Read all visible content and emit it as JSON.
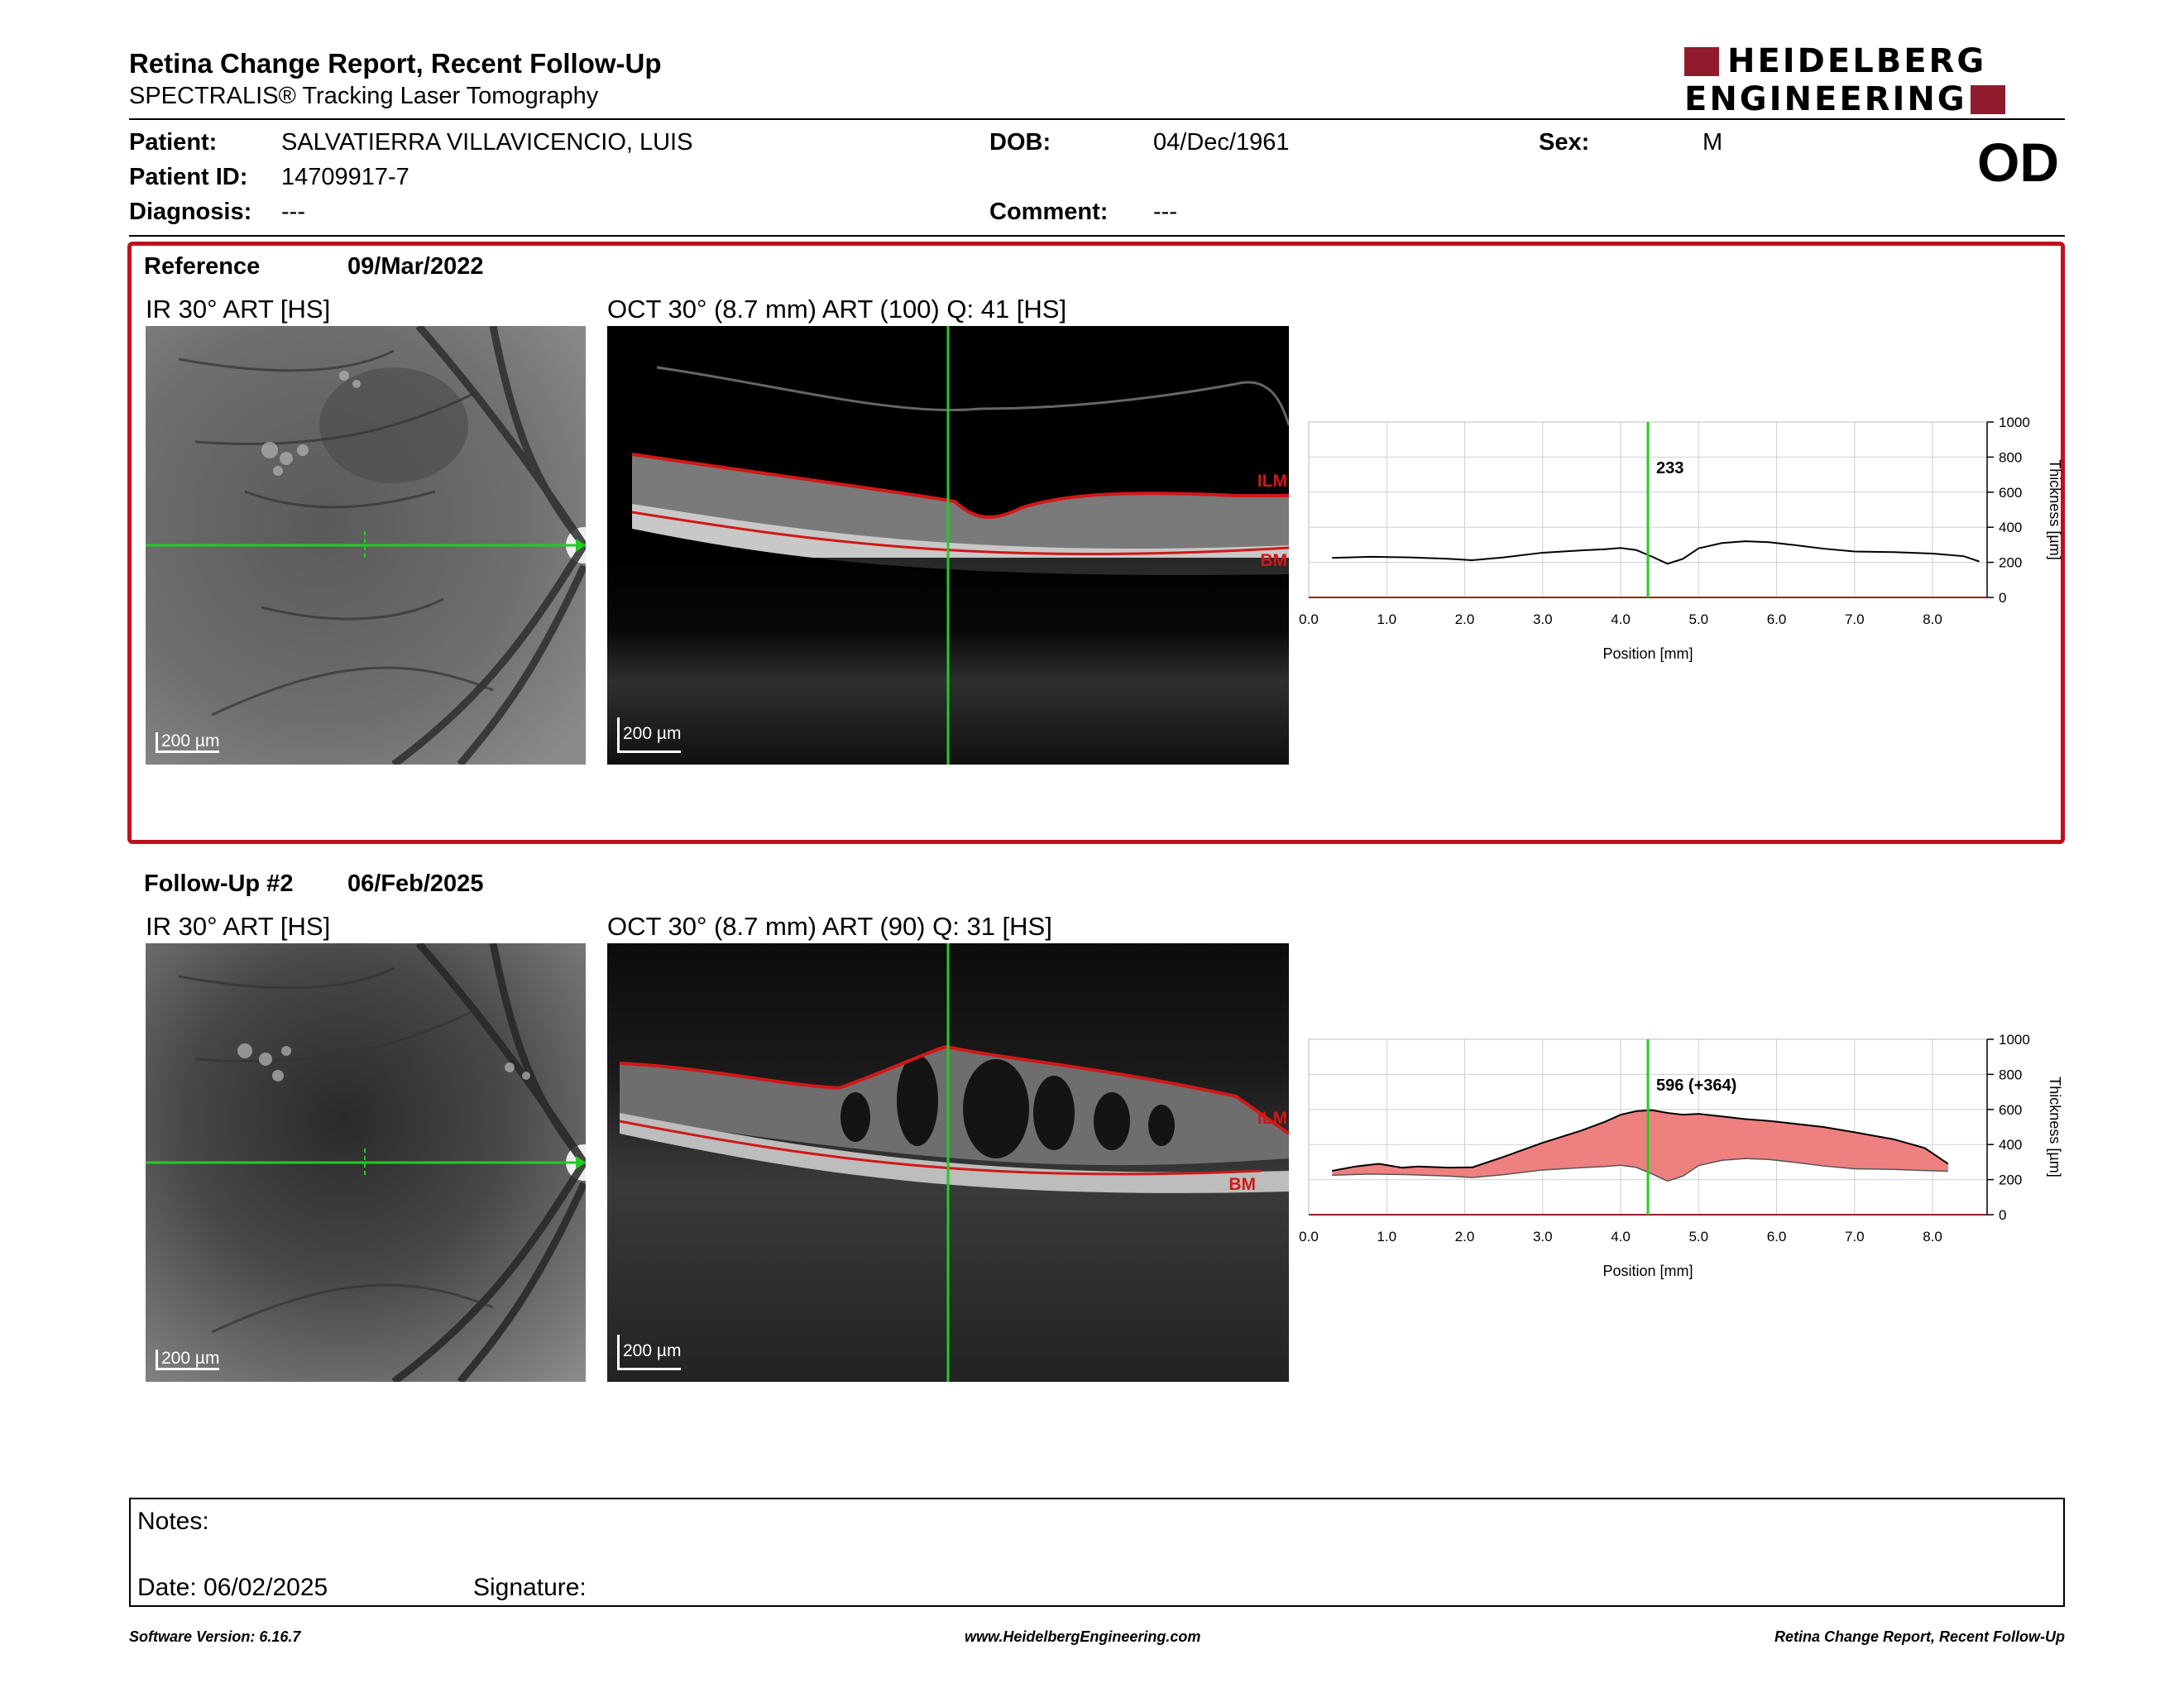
{
  "header": {
    "title": "Retina Change Report, Recent Follow-Up",
    "subtitle": "SPECTRALIS® Tracking Laser Tomography",
    "logo_line1": "HEIDELBERG",
    "logo_line2": "ENGINEERING",
    "eye": "OD"
  },
  "patient": {
    "patient_label": "Patient:",
    "patient_name": "SALVATIERRA VILLAVICENCIO, LUIS",
    "dob_label": "DOB:",
    "dob": "04/Dec/1961",
    "sex_label": "Sex:",
    "sex": "M",
    "id_label": "Patient ID:",
    "id": "14709917-7",
    "diagnosis_label": "Diagnosis:",
    "diagnosis": "---",
    "comment_label": "Comment:",
    "comment": "---"
  },
  "reference": {
    "label": "Reference",
    "date": "09/Mar/2022",
    "ir_title": "IR 30° ART [HS]",
    "oct_title": "OCT 30° (8.7 mm) ART (100) Q: 41 [HS]",
    "scale_label": "200 µm",
    "layer_top": "ILM",
    "layer_bottom": "BM"
  },
  "followup": {
    "label": "Follow-Up #2",
    "date": "06/Feb/2025",
    "ir_title": "IR 30° ART [HS]",
    "oct_title": "OCT 30° (8.7 mm) ART (90) Q: 31 [HS]",
    "scale_label": "200 µm",
    "layer_top": "ILM",
    "layer_bottom": "BM"
  },
  "chart_data": [
    {
      "type": "line",
      "xlabel": "Position [mm]",
      "ylabel": "Thickness [µm]",
      "xlim": [
        0,
        8.7
      ],
      "ylim": [
        0,
        1000
      ],
      "xticks": [
        "0.0",
        "1.0",
        "2.0",
        "3.0",
        "4.0",
        "5.0",
        "6.0",
        "7.0",
        "8.0"
      ],
      "yticks": [
        "0",
        "200",
        "400",
        "600",
        "800",
        "1000"
      ],
      "grid": true,
      "cursor_x": 4.35,
      "cursor_label": "233",
      "cursor_color": "#22cc22",
      "series": [
        {
          "x": [
            0.3,
            0.8,
            1.3,
            1.8,
            2.1,
            2.5,
            3.0,
            3.5,
            3.8,
            4.0,
            4.2,
            4.4,
            4.6,
            4.8,
            5.0,
            5.3,
            5.6,
            5.9,
            6.2,
            6.6,
            7.0,
            7.5,
            8.0,
            8.4,
            8.6
          ],
          "values": [
            225,
            232,
            228,
            220,
            212,
            228,
            255,
            268,
            275,
            282,
            270,
            233,
            192,
            220,
            280,
            310,
            320,
            315,
            300,
            278,
            262,
            258,
            250,
            235,
            205
          ]
        }
      ]
    },
    {
      "type": "area",
      "xlabel": "Position [mm]",
      "ylabel": "Thickness [µm]",
      "xlim": [
        0,
        8.7
      ],
      "ylim": [
        0,
        1000
      ],
      "xticks": [
        "0.0",
        "1.0",
        "2.0",
        "3.0",
        "4.0",
        "5.0",
        "6.0",
        "7.0",
        "8.0"
      ],
      "yticks": [
        "0",
        "200",
        "400",
        "600",
        "800",
        "1000"
      ],
      "grid": true,
      "cursor_x": 4.35,
      "cursor_label": "596 (+364)",
      "cursor_color": "#22cc22",
      "fill_color": "#ee8080",
      "series": [
        {
          "name": "Follow-Up",
          "x": [
            0.3,
            0.6,
            0.9,
            1.2,
            1.4,
            1.8,
            2.1,
            2.5,
            3.0,
            3.5,
            3.8,
            4.0,
            4.2,
            4.4,
            4.6,
            4.8,
            5.0,
            5.3,
            5.6,
            5.9,
            6.2,
            6.6,
            7.0,
            7.5,
            7.9,
            8.2
          ],
          "values": [
            250,
            275,
            290,
            268,
            275,
            268,
            270,
            330,
            410,
            480,
            530,
            570,
            590,
            596,
            580,
            570,
            575,
            560,
            545,
            535,
            520,
            500,
            470,
            430,
            380,
            290
          ]
        },
        {
          "name": "Reference",
          "x": [
            0.3,
            0.8,
            1.3,
            1.8,
            2.1,
            2.5,
            3.0,
            3.5,
            3.8,
            4.0,
            4.2,
            4.4,
            4.6,
            4.8,
            5.0,
            5.3,
            5.6,
            5.9,
            6.2,
            6.6,
            7.0,
            7.5,
            7.9,
            8.2
          ],
          "values": [
            225,
            232,
            228,
            220,
            212,
            228,
            255,
            268,
            275,
            282,
            270,
            233,
            192,
            220,
            280,
            310,
            320,
            315,
            300,
            278,
            262,
            258,
            252,
            248
          ]
        }
      ]
    }
  ],
  "notes": {
    "notes_label": "Notes:",
    "date_label": "Date: 06/02/2025",
    "signature_label": "Signature:"
  },
  "footer": {
    "software": "Software Version: 6.16.7",
    "website": "www.HeidelbergEngineering.com",
    "report_name": "Retina Change Report, Recent Follow-Up"
  },
  "colors": {
    "brand": "#8f1b2d",
    "reference_frame": "#c0101c",
    "scan_line": "#22cc22",
    "layer_line": "#d01818"
  }
}
